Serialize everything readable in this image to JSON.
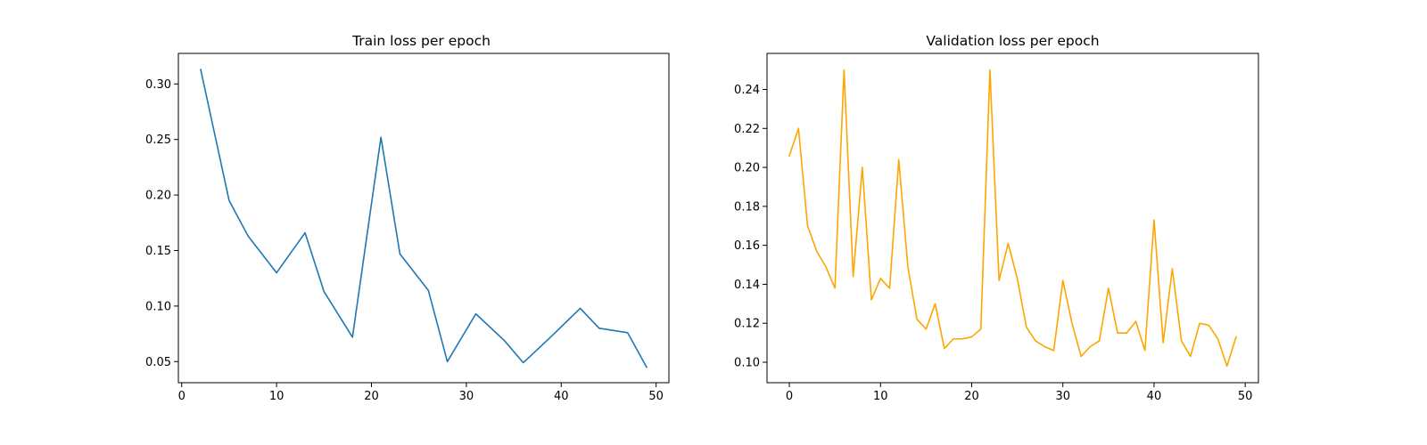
{
  "chart_data": [
    {
      "type": "line",
      "title": "Train loss per epoch",
      "xlabel": "",
      "ylabel": "",
      "xlim": [
        -0.35,
        51.35
      ],
      "ylim": [
        0.031,
        0.3275
      ],
      "xticks": [
        0,
        10,
        20,
        30,
        40,
        50
      ],
      "xtick_labels": [
        "0",
        "10",
        "20",
        "30",
        "40",
        "50"
      ],
      "yticks": [
        0.05,
        0.1,
        0.15,
        0.2,
        0.25,
        0.3
      ],
      "ytick_labels": [
        "0.05",
        "0.10",
        "0.15",
        "0.20",
        "0.25",
        "0.30"
      ],
      "grid": false,
      "series": [
        {
          "name": "train loss",
          "color": "#1f77b4",
          "x": [
            2,
            5,
            7,
            10,
            13,
            15,
            18,
            21,
            23,
            26,
            28,
            31,
            34,
            36,
            39,
            42,
            44,
            47,
            49
          ],
          "y": [
            0.313,
            0.195,
            0.163,
            0.13,
            0.166,
            0.113,
            0.072,
            0.252,
            0.147,
            0.114,
            0.05,
            0.093,
            0.069,
            0.049,
            0.073,
            0.098,
            0.08,
            0.076,
            0.045
          ]
        }
      ]
    },
    {
      "type": "line",
      "title": "Validation loss per epoch",
      "xlabel": "",
      "ylabel": "",
      "xlim": [
        -2.45,
        51.45
      ],
      "ylim": [
        0.0895,
        0.2585
      ],
      "xticks": [
        0,
        10,
        20,
        30,
        40,
        50
      ],
      "xtick_labels": [
        "0",
        "10",
        "20",
        "30",
        "40",
        "50"
      ],
      "yticks": [
        0.1,
        0.12,
        0.14,
        0.16,
        0.18,
        0.2,
        0.22,
        0.24
      ],
      "ytick_labels": [
        "0.10",
        "0.12",
        "0.14",
        "0.16",
        "0.18",
        "0.20",
        "0.22",
        "0.24"
      ],
      "grid": false,
      "series": [
        {
          "name": "validation loss",
          "color": "#ffa500",
          "x": [
            0,
            1,
            2,
            3,
            4,
            5,
            6,
            7,
            8,
            9,
            10,
            11,
            12,
            13,
            14,
            15,
            16,
            17,
            18,
            19,
            20,
            21,
            22,
            23,
            24,
            25,
            26,
            27,
            28,
            29,
            30,
            31,
            32,
            33,
            34,
            35,
            36,
            37,
            38,
            39,
            40,
            41,
            42,
            43,
            44,
            45,
            46,
            47,
            48,
            49
          ],
          "y": [
            0.206,
            0.22,
            0.17,
            0.157,
            0.149,
            0.138,
            0.25,
            0.144,
            0.2,
            0.132,
            0.143,
            0.138,
            0.204,
            0.149,
            0.122,
            0.117,
            0.13,
            0.107,
            0.112,
            0.112,
            0.113,
            0.117,
            0.25,
            0.142,
            0.161,
            0.143,
            0.118,
            0.111,
            0.108,
            0.106,
            0.142,
            0.12,
            0.103,
            0.108,
            0.111,
            0.138,
            0.115,
            0.115,
            0.121,
            0.106,
            0.173,
            0.11,
            0.148,
            0.111,
            0.103,
            0.12,
            0.119,
            0.112,
            0.098,
            0.113
          ]
        }
      ]
    }
  ]
}
